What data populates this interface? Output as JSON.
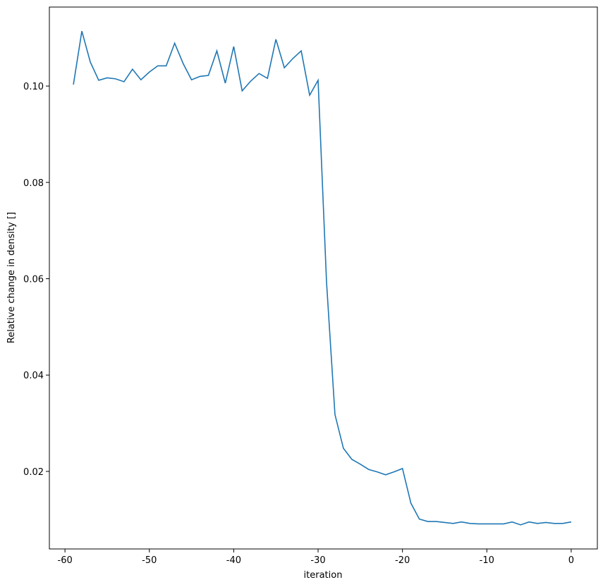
{
  "chart_data": {
    "type": "line",
    "x_label": "iteration",
    "y_label": "Relative change in density []",
    "x": [
      -59,
      -58,
      -57,
      -56,
      -55,
      -54,
      -53,
      -52,
      -51,
      -50,
      -49,
      -48,
      -47,
      -46,
      -45,
      -44,
      -43,
      -42,
      -41,
      -40,
      -39,
      -38,
      -37,
      -36,
      -35,
      -34,
      -33,
      -32,
      -31,
      -30,
      -29,
      -28,
      -27,
      -26,
      -25,
      -24,
      -23,
      -22,
      -21,
      -20,
      -19,
      -18,
      -17,
      -16,
      -15,
      -14,
      -13,
      -12,
      -11,
      -10,
      -9,
      -8,
      -7,
      -6,
      -5,
      -4,
      -3,
      -2,
      -1,
      0
    ],
    "series": [
      {
        "color": "#1f77b4",
        "values": [
          0.1003,
          0.1114,
          0.105,
          0.1012,
          0.1017,
          0.1015,
          0.1009,
          0.1035,
          0.1013,
          0.1029,
          0.1042,
          0.1042,
          0.1089,
          0.1047,
          0.1013,
          0.102,
          0.1022,
          0.1073,
          0.1006,
          0.1082,
          0.099,
          0.101,
          0.1026,
          0.1016,
          0.1097,
          0.1038,
          0.1057,
          0.1073,
          0.0981,
          0.1012,
          0.0593,
          0.0318,
          0.0248,
          0.0225,
          0.0215,
          0.0204,
          0.0199,
          0.0193,
          0.0199,
          0.0206,
          0.0134,
          0.0101,
          0.0096,
          0.0096,
          0.0094,
          0.0092,
          0.0095,
          0.0092,
          0.0091,
          0.0091,
          0.0091,
          0.0091,
          0.0095,
          0.0089,
          0.0095,
          0.0092,
          0.0094,
          0.0092,
          0.0092,
          0.0095
        ]
      }
    ],
    "xlim": [
      -61.85,
      3.1
    ],
    "ylim": [
      0.0039,
      0.1164
    ],
    "xticks": [
      -60,
      -50,
      -40,
      -30,
      -20,
      -10,
      0
    ],
    "yticks": [
      0.02,
      0.04,
      0.06,
      0.08,
      {
        "value": 0.1,
        "label": "0.10"
      }
    ]
  }
}
